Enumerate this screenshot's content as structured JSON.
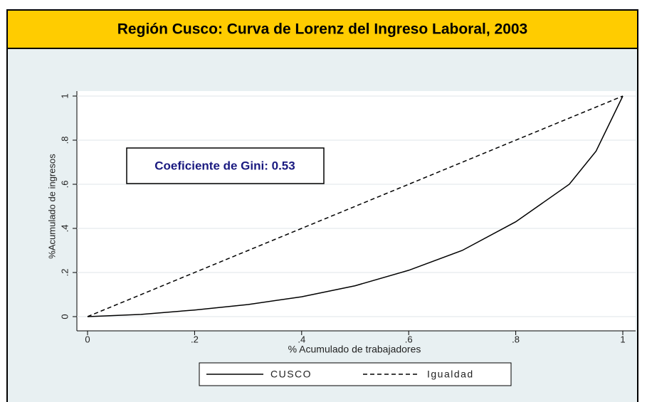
{
  "chart_data": {
    "type": "line",
    "title": "Región Cusco: Curva de Lorenz del Ingreso Laboral, 2003",
    "xlabel": "% Acumulado de trabajadores",
    "ylabel": "%Acumulado de ingresos",
    "annotation": "Coeficiente de Gini:  0.53",
    "xlim": [
      0,
      1
    ],
    "ylim": [
      0,
      1
    ],
    "xticks": [
      0,
      {
        "value": 0.2,
        "label": ".2"
      },
      {
        "value": 0.4,
        "label": ".4"
      },
      {
        "value": 0.6,
        "label": ".6"
      },
      {
        "value": 0.8,
        "label": ".8"
      },
      1
    ],
    "yticks": [
      0,
      {
        "value": 0.2,
        "label": ".2"
      },
      {
        "value": 0.4,
        "label": ".4"
      },
      {
        "value": 0.6,
        "label": ".6"
      },
      {
        "value": 0.8,
        "label": ".8"
      },
      1
    ],
    "grid": true,
    "legend": "bottom",
    "series": [
      {
        "name": "CUSCO",
        "color": "#000000",
        "dashed": false,
        "x": [
          0,
          0.1,
          0.2,
          0.3,
          0.4,
          0.5,
          0.6,
          0.7,
          0.8,
          0.9,
          0.95,
          1
        ],
        "values": [
          0,
          0.01,
          0.03,
          0.055,
          0.09,
          0.14,
          0.21,
          0.3,
          0.43,
          0.6,
          0.75,
          1
        ]
      },
      {
        "name": "Igualdad",
        "color": "#000000",
        "dashed": true,
        "x": [
          0,
          1
        ],
        "values": [
          0,
          1
        ]
      }
    ]
  }
}
